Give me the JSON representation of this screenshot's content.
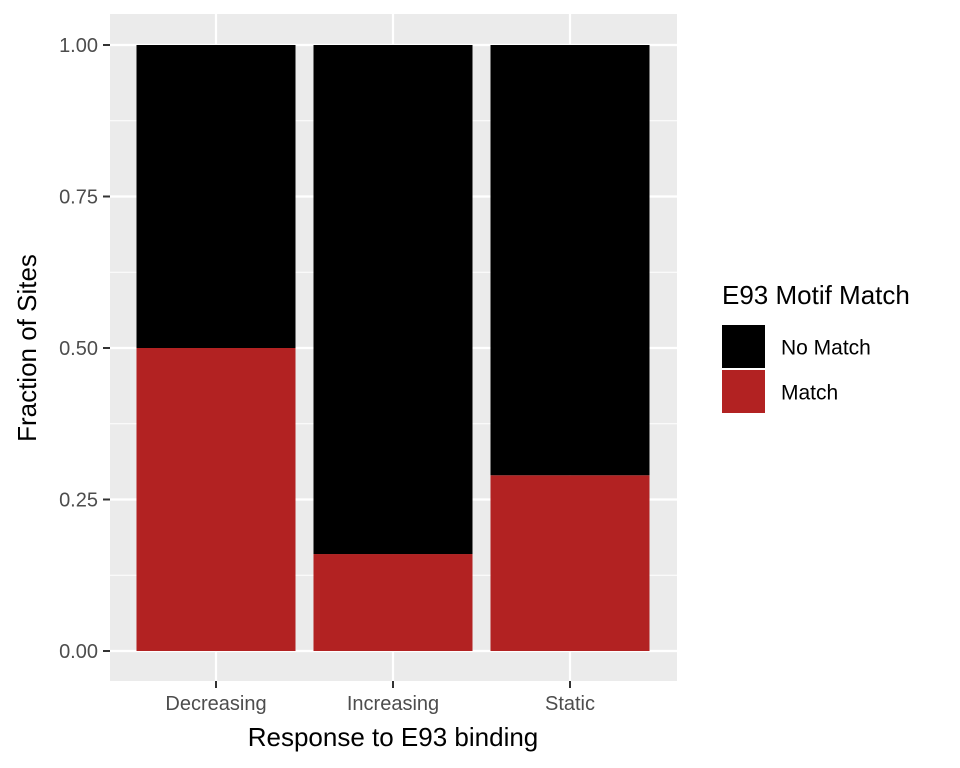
{
  "chart_data": {
    "type": "bar",
    "stacked": true,
    "categories": [
      "Decreasing",
      "Increasing",
      "Static"
    ],
    "series": [
      {
        "name": "Match",
        "values": [
          0.5,
          0.16,
          0.29
        ],
        "color": "#b22222"
      },
      {
        "name": "No Match",
        "values": [
          0.5,
          0.84,
          0.71
        ],
        "color": "#000000"
      }
    ],
    "xlabel": "Response to E93 binding",
    "ylabel": "Fraction of Sites",
    "ylim": [
      0,
      1
    ],
    "yticks": [
      "0.00",
      "0.25",
      "0.50",
      "0.75",
      "1.00"
    ],
    "ytick_values": [
      0,
      0.25,
      0.5,
      0.75,
      1.0
    ],
    "grid": true,
    "panel_background": "#ebebeb",
    "legend": {
      "title": "E93 Motif Match",
      "position": "right",
      "entries": [
        {
          "label": "No Match",
          "color": "#000000"
        },
        {
          "label": "Match",
          "color": "#b22222"
        }
      ]
    }
  }
}
